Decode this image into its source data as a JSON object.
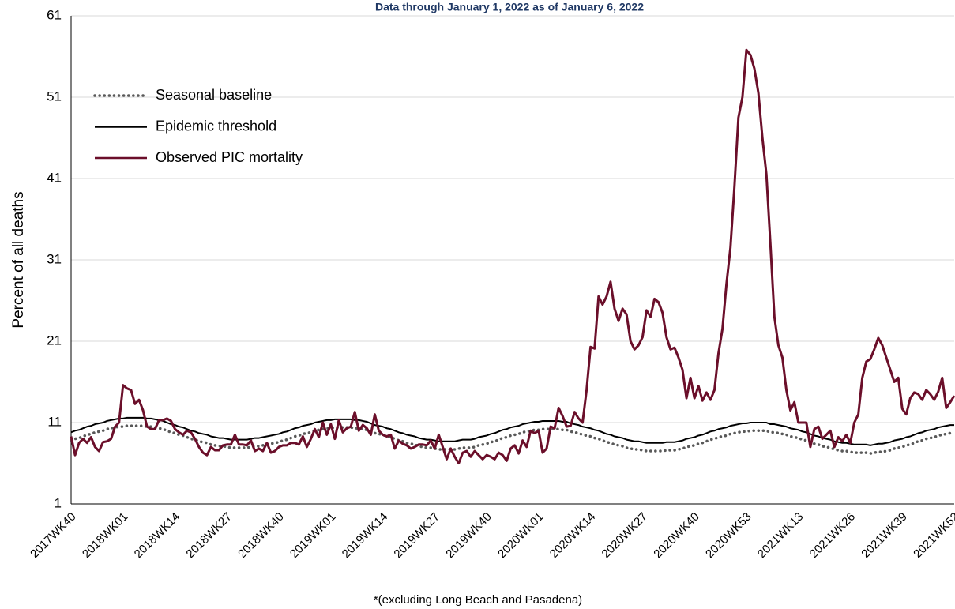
{
  "chart_data": {
    "type": "line",
    "subtitle": "Data through January 1, 2022 as of January 6, 2022",
    "ylabel": "Percent of all deaths",
    "footnote": "*(excluding Long Beach and Pasadena)",
    "categories": [
      "2017WK40",
      null,
      null,
      null,
      null,
      null,
      null,
      null,
      null,
      null,
      null,
      null,
      null,
      "2018WK01",
      null,
      null,
      null,
      null,
      null,
      null,
      null,
      null,
      null,
      null,
      null,
      null,
      "2018WK14",
      null,
      null,
      null,
      null,
      null,
      null,
      null,
      null,
      null,
      null,
      null,
      null,
      "2018WK27",
      null,
      null,
      null,
      null,
      null,
      null,
      null,
      null,
      null,
      null,
      null,
      null,
      "2018WK40",
      null,
      null,
      null,
      null,
      null,
      null,
      null,
      null,
      null,
      null,
      null,
      null,
      "2019WK01",
      null,
      null,
      null,
      null,
      null,
      null,
      null,
      null,
      null,
      null,
      null,
      null,
      "2019WK14",
      null,
      null,
      null,
      null,
      null,
      null,
      null,
      null,
      null,
      null,
      null,
      null,
      "2019WK27",
      null,
      null,
      null,
      null,
      null,
      null,
      null,
      null,
      null,
      null,
      null,
      null,
      "2019WK40",
      null,
      null,
      null,
      null,
      null,
      null,
      null,
      null,
      null,
      null,
      null,
      null,
      "2020WK01",
      null,
      null,
      null,
      null,
      null,
      null,
      null,
      null,
      null,
      null,
      null,
      null,
      "2020WK14",
      null,
      null,
      null,
      null,
      null,
      null,
      null,
      null,
      null,
      null,
      null,
      null,
      "2020WK27",
      null,
      null,
      null,
      null,
      null,
      null,
      null,
      null,
      null,
      null,
      null,
      null,
      "2020WK40",
      null,
      null,
      null,
      null,
      null,
      null,
      null,
      null,
      null,
      null,
      null,
      null,
      "2020WK53",
      null,
      null,
      null,
      null,
      null,
      null,
      null,
      null,
      null,
      null,
      null,
      null,
      "2021WK13",
      null,
      null,
      null,
      null,
      null,
      null,
      null,
      null,
      null,
      null,
      null,
      null,
      "2021WK26",
      null,
      null,
      null,
      null,
      null,
      null,
      null,
      null,
      null,
      null,
      null,
      null,
      "2021WK39",
      null,
      null,
      null,
      null,
      null,
      null,
      null,
      null,
      null,
      null,
      null,
      null,
      "2021WK52"
    ],
    "series": [
      {
        "name": "Seasonal baseline",
        "color": "#595959",
        "dash": "dotted",
        "values": [
          8.8,
          9.0,
          9.1,
          9.3,
          9.5,
          9.6,
          9.8,
          9.9,
          10.0,
          10.2,
          10.3,
          10.4,
          10.5,
          10.5,
          10.6,
          10.6,
          10.6,
          10.6,
          10.6,
          10.5,
          10.5,
          10.4,
          10.3,
          10.2,
          10.0,
          9.8,
          9.7,
          9.5,
          9.4,
          9.2,
          9.0,
          8.9,
          8.7,
          8.6,
          8.5,
          8.3,
          8.2,
          8.1,
          8.1,
          8.0,
          7.9,
          7.9,
          7.9,
          7.9,
          7.9,
          8.0,
          8.1,
          8.1,
          8.2,
          8.3,
          8.4,
          8.5,
          8.6,
          8.8,
          8.9,
          9.1,
          9.3,
          9.4,
          9.6,
          9.7,
          9.8,
          10.0,
          10.1,
          10.2,
          10.3,
          10.3,
          10.4,
          10.4,
          10.4,
          10.4,
          10.4,
          10.3,
          10.3,
          10.2,
          10.1,
          9.9,
          9.7,
          9.6,
          9.5,
          9.3,
          9.2,
          9.0,
          8.8,
          8.7,
          8.5,
          8.4,
          8.3,
          8.1,
          8.0,
          7.9,
          7.9,
          7.8,
          7.7,
          7.7,
          7.7,
          7.7,
          7.7,
          7.8,
          7.9,
          7.9,
          7.9,
          8.0,
          8.2,
          8.3,
          8.4,
          8.6,
          8.7,
          8.9,
          9.1,
          9.2,
          9.4,
          9.5,
          9.6,
          9.8,
          9.9,
          10.0,
          10.1,
          10.1,
          10.2,
          10.2,
          10.2,
          10.2,
          10.2,
          10.1,
          10.1,
          9.9,
          9.8,
          9.7,
          9.5,
          9.4,
          9.3,
          9.1,
          9.0,
          8.8,
          8.6,
          8.5,
          8.3,
          8.2,
          8.1,
          7.9,
          7.8,
          7.7,
          7.7,
          7.6,
          7.5,
          7.5,
          7.5,
          7.5,
          7.5,
          7.6,
          7.6,
          7.6,
          7.7,
          7.8,
          8.0,
          8.1,
          8.2,
          8.4,
          8.5,
          8.7,
          8.9,
          9.0,
          9.2,
          9.3,
          9.4,
          9.6,
          9.7,
          9.8,
          9.9,
          9.9,
          10.0,
          10.0,
          10.0,
          10.0,
          10.0,
          9.8,
          9.8,
          9.7,
          9.6,
          9.5,
          9.3,
          9.2,
          9.1,
          8.9,
          8.8,
          8.6,
          8.4,
          8.3,
          8.1,
          8.0,
          7.9,
          7.7,
          7.6,
          7.5,
          7.5,
          7.4,
          7.3,
          7.3,
          7.3,
          7.3,
          7.2,
          7.3,
          7.4,
          7.4,
          7.5,
          7.6,
          7.8,
          7.9,
          8.0,
          8.2,
          8.3,
          8.5,
          8.7,
          8.8,
          9.0,
          9.1,
          9.2,
          9.4,
          9.5,
          9.6,
          9.7,
          9.7
        ]
      },
      {
        "name": "Epidemic threshold",
        "color": "#000000",
        "dash": "solid",
        "values": [
          9.8,
          10.0,
          10.1,
          10.3,
          10.5,
          10.6,
          10.8,
          10.9,
          11.0,
          11.2,
          11.3,
          11.4,
          11.5,
          11.5,
          11.6,
          11.6,
          11.6,
          11.6,
          11.6,
          11.5,
          11.5,
          11.4,
          11.3,
          11.2,
          11.0,
          10.8,
          10.7,
          10.5,
          10.4,
          10.2,
          10.0,
          9.9,
          9.7,
          9.6,
          9.5,
          9.3,
          9.2,
          9.1,
          9.1,
          9.0,
          8.9,
          8.9,
          8.9,
          8.9,
          8.9,
          9.0,
          9.1,
          9.1,
          9.2,
          9.3,
          9.4,
          9.5,
          9.6,
          9.8,
          9.9,
          10.1,
          10.3,
          10.4,
          10.6,
          10.7,
          10.8,
          11.0,
          11.1,
          11.2,
          11.3,
          11.3,
          11.4,
          11.4,
          11.4,
          11.4,
          11.4,
          11.3,
          11.3,
          11.2,
          11.1,
          10.9,
          10.7,
          10.6,
          10.5,
          10.3,
          10.2,
          10.0,
          9.8,
          9.7,
          9.5,
          9.4,
          9.3,
          9.1,
          9.0,
          8.9,
          8.9,
          8.8,
          8.7,
          8.7,
          8.7,
          8.7,
          8.7,
          8.8,
          8.9,
          8.9,
          8.9,
          9.0,
          9.2,
          9.3,
          9.4,
          9.6,
          9.7,
          9.9,
          10.1,
          10.2,
          10.4,
          10.5,
          10.6,
          10.8,
          10.9,
          11.0,
          11.1,
          11.1,
          11.2,
          11.2,
          11.2,
          11.2,
          11.2,
          11.1,
          11.1,
          10.9,
          10.8,
          10.7,
          10.5,
          10.4,
          10.3,
          10.1,
          10.0,
          9.8,
          9.6,
          9.5,
          9.3,
          9.2,
          9.1,
          8.9,
          8.8,
          8.7,
          8.7,
          8.6,
          8.5,
          8.5,
          8.5,
          8.5,
          8.5,
          8.6,
          8.6,
          8.6,
          8.7,
          8.8,
          9.0,
          9.1,
          9.2,
          9.4,
          9.5,
          9.7,
          9.9,
          10.0,
          10.2,
          10.3,
          10.4,
          10.6,
          10.7,
          10.8,
          10.9,
          10.9,
          11.0,
          11.0,
          11.0,
          11.0,
          11.0,
          10.8,
          10.8,
          10.7,
          10.6,
          10.5,
          10.3,
          10.2,
          10.1,
          9.9,
          9.8,
          9.6,
          9.4,
          9.3,
          9.1,
          9.0,
          8.9,
          8.7,
          8.6,
          8.5,
          8.5,
          8.4,
          8.3,
          8.3,
          8.3,
          8.3,
          8.2,
          8.3,
          8.4,
          8.4,
          8.5,
          8.6,
          8.8,
          8.9,
          9.0,
          9.2,
          9.3,
          9.5,
          9.7,
          9.8,
          10.0,
          10.1,
          10.2,
          10.4,
          10.5,
          10.6,
          10.7,
          10.7
        ]
      },
      {
        "name": "Observed PIC mortality",
        "color": "#6b0f2a",
        "dash": "solid",
        "values": [
          9.3,
          7,
          8.5,
          9,
          8.5,
          9.2,
          8,
          7.5,
          8.6,
          8.7,
          9,
          10.5,
          11,
          15.6,
          15.2,
          15,
          13.3,
          13.8,
          12.5,
          10.5,
          10.2,
          10.2,
          11.3,
          11.3,
          11.5,
          11.2,
          10.2,
          9.8,
          9.5,
          10,
          9.8,
          9,
          8,
          7.3,
          7,
          8,
          7.6,
          7.6,
          8.2,
          8.3,
          8.3,
          9.5,
          8.3,
          8.3,
          8.2,
          8.8,
          7.5,
          7.8,
          7.5,
          8.5,
          7.3,
          7.5,
          8,
          8.2,
          8.2,
          8.5,
          8.5,
          8.3,
          9.3,
          8,
          9,
          10.2,
          9.2,
          11,
          9.5,
          10.8,
          9,
          11.3,
          9.8,
          10.3,
          10.5,
          12.3,
          10,
          10.7,
          10.3,
          9.5,
          12,
          10,
          9.5,
          9.3,
          9.5,
          7.8,
          8.8,
          8.4,
          8.2,
          7.8,
          8,
          8.3,
          8.3,
          8.2,
          8.8,
          7.8,
          9.5,
          8,
          6.5,
          7.8,
          6.8,
          6,
          7.3,
          7.5,
          6.8,
          7.5,
          7,
          6.5,
          7,
          6.8,
          6.5,
          7.3,
          7,
          6.3,
          7.8,
          8.2,
          7.2,
          8.8,
          8,
          10,
          9.7,
          10,
          7.3,
          7.8,
          10.5,
          10.3,
          12.8,
          11.8,
          10.5,
          10.6,
          12.3,
          11.5,
          11,
          15,
          20.3,
          20.1,
          26.5,
          25.5,
          26.5,
          28.3,
          25,
          23.5,
          25,
          24.3,
          21,
          20,
          20.5,
          21.5,
          24.8,
          24,
          26.2,
          25.8,
          24.5,
          21.5,
          20,
          20.2,
          19,
          17.5,
          14,
          16.5,
          14,
          15.5,
          13.7,
          14.7,
          13.8,
          15,
          19.5,
          22.5,
          28,
          32.5,
          40,
          48.5,
          51,
          56.8,
          56.2,
          54.5,
          51.5,
          46,
          41.5,
          33,
          24,
          20.5,
          19,
          15,
          12.5,
          13.5,
          11,
          11,
          11,
          8,
          10.2,
          10.5,
          9,
          9.5,
          10,
          8,
          9.2,
          8.7,
          9.5,
          8.5,
          11,
          12,
          16.5,
          18.5,
          18.8,
          20,
          21.4,
          20.5,
          19,
          17.5,
          16,
          16.5,
          12.7,
          12,
          14,
          14.7,
          14.5,
          13.8,
          15,
          14.5,
          13.8,
          14.8,
          16.5,
          12.8,
          13.5,
          14.3
        ]
      }
    ],
    "ylim": [
      1,
      61
    ],
    "yticks": [
      1,
      11,
      21,
      31,
      41,
      51,
      61
    ],
    "grid": true,
    "legend": "upper left"
  }
}
